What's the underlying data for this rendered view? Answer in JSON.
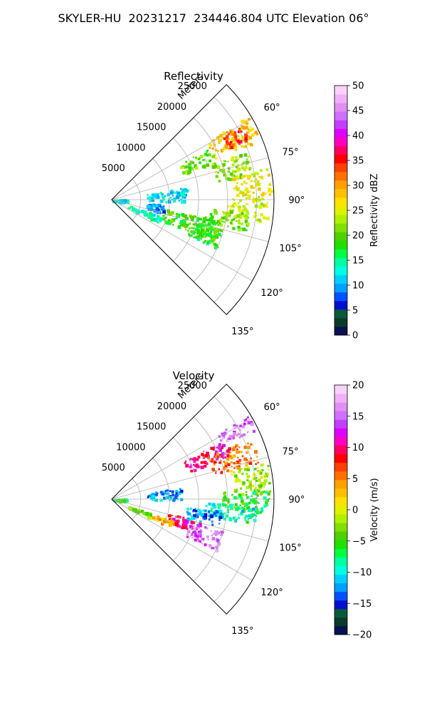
{
  "figure": {
    "title": "SKYLER-HU  20231217  234446.804 UTC Elevation 06°"
  },
  "chart_data": [
    {
      "type": "heatmap",
      "title": "Reflectivity",
      "projection": "polar sector",
      "radial_label": "Meters",
      "radial_ticks": [
        5000,
        10000,
        15000,
        20000,
        25000
      ],
      "radial_tick_labels": [
        "5000",
        "10000",
        "15000",
        "20000",
        "25000"
      ],
      "rlim": [
        0,
        28000
      ],
      "azimuth_ticks": [
        60,
        75,
        90,
        105,
        120,
        135
      ],
      "azimuth_tick_labels": [
        "60°",
        "75°",
        "90°",
        "105°",
        "120°",
        "135°"
      ],
      "azimuth_range": [
        45,
        135
      ],
      "grid": true,
      "colorbar": {
        "label": "Reflectivity dBZ",
        "range": [
          0,
          50
        ],
        "ticks": [
          0,
          5,
          10,
          15,
          20,
          25,
          30,
          35,
          40,
          45,
          50
        ],
        "tick_labels": [
          "0",
          "5",
          "10",
          "15",
          "20",
          "25",
          "30",
          "35",
          "40",
          "45",
          "50"
        ],
        "colors": [
          "#0a1050",
          "#0a3a2a",
          "#0a5a3a",
          "#0010d0",
          "#0050ff",
          "#00a0ff",
          "#00d0ff",
          "#00ffe0",
          "#00ffa0",
          "#00ff40",
          "#20e000",
          "#50d000",
          "#80e000",
          "#b0f000",
          "#e0f000",
          "#ffe000",
          "#ffc000",
          "#ffa000",
          "#ff7000",
          "#ff4000",
          "#ff0000",
          "#ff0060",
          "#ff00c0",
          "#e000ff",
          "#c040ff",
          "#d070ff",
          "#e090f0",
          "#f0b0f8",
          "#fad0fc"
        ]
      },
      "echoes": [
        {
          "az": [
            58,
            68
          ],
          "r": [
            19000,
            27500
          ],
          "value": 28
        },
        {
          "az": [
            60,
            66
          ],
          "r": [
            22000,
            26000
          ],
          "value": 34
        },
        {
          "az": [
            62,
            70
          ],
          "r": [
            13000,
            19000
          ],
          "value": 20
        },
        {
          "az": [
            70,
            80
          ],
          "r": [
            18000,
            25000
          ],
          "value": 22
        },
        {
          "az": [
            78,
            88
          ],
          "r": [
            21000,
            27500
          ],
          "value": 26
        },
        {
          "az": [
            88,
            98
          ],
          "r": [
            20000,
            27000
          ],
          "value": 24
        },
        {
          "az": [
            95,
            103
          ],
          "r": [
            17000,
            24000
          ],
          "value": 21
        },
        {
          "az": [
            100,
            112
          ],
          "r": [
            9000,
            19000
          ],
          "value": 19
        },
        {
          "az": [
            105,
            115
          ],
          "r": [
            14000,
            20000
          ],
          "value": 18
        },
        {
          "az": [
            108,
            116
          ],
          "r": [
            3000,
            9000
          ],
          "value": 14
        },
        {
          "az": [
            80,
            92
          ],
          "r": [
            6000,
            13000
          ],
          "value": 12
        },
        {
          "az": [
            95,
            105
          ],
          "r": [
            6000,
            9000
          ],
          "value": 9
        },
        {
          "az": [
            85,
            100
          ],
          "r": [
            0,
            2500
          ],
          "value": 12
        }
      ]
    },
    {
      "type": "heatmap",
      "title": "Velocity",
      "projection": "polar sector",
      "radial_label": "Meters",
      "radial_ticks": [
        5000,
        10000,
        15000,
        20000,
        25000
      ],
      "radial_tick_labels": [
        "5000",
        "10000",
        "15000",
        "20000",
        "25000"
      ],
      "rlim": [
        0,
        28000
      ],
      "azimuth_ticks": [
        60,
        75,
        90,
        105,
        120,
        135
      ],
      "azimuth_tick_labels": [
        "60°",
        "75°",
        "90°",
        "105°",
        "120°",
        "135°"
      ],
      "azimuth_range": [
        45,
        135
      ],
      "grid": true,
      "colorbar": {
        "label": "Velocity (m/s)",
        "range": [
          -20,
          20
        ],
        "ticks": [
          -20,
          -15,
          -10,
          -5,
          0,
          5,
          10,
          15,
          20
        ],
        "tick_labels": [
          "−20",
          "−15",
          "−10",
          "−5",
          "0",
          "5",
          "10",
          "15",
          "20"
        ],
        "colors": [
          "#0a1050",
          "#0a3a2a",
          "#0a5a3a",
          "#0010d0",
          "#0050ff",
          "#00a0ff",
          "#00d0ff",
          "#00ffe0",
          "#00ffa0",
          "#00ff40",
          "#20e000",
          "#50d000",
          "#80e000",
          "#b0f000",
          "#e0f000",
          "#ffe000",
          "#ffc000",
          "#ffa000",
          "#ff7000",
          "#ff4000",
          "#ff0000",
          "#ff0060",
          "#ff00c0",
          "#e000ff",
          "#c040ff",
          "#d070ff",
          "#e090f0",
          "#f0b0f8",
          "#fad0fc"
        ]
      },
      "echoes": [
        {
          "az": [
            58,
            64
          ],
          "r": [
            21000,
            27500
          ],
          "value": 15
        },
        {
          "az": [
            62,
            70
          ],
          "r": [
            14000,
            22000
          ],
          "value": 11
        },
        {
          "az": [
            66,
            76
          ],
          "r": [
            18000,
            26000
          ],
          "value": 6
        },
        {
          "az": [
            76,
            88
          ],
          "r": [
            21000,
            27500
          ],
          "value": -2
        },
        {
          "az": [
            86,
            95
          ],
          "r": [
            19000,
            27000
          ],
          "value": -6
        },
        {
          "az": [
            92,
            100
          ],
          "r": [
            16000,
            25000
          ],
          "value": -9
        },
        {
          "az": [
            96,
            104
          ],
          "r": [
            13000,
            19000
          ],
          "value": -12
        },
        {
          "az": [
            104,
            112
          ],
          "r": [
            10000,
            16000
          ],
          "value": 10
        },
        {
          "az": [
            106,
            116
          ],
          "r": [
            14000,
            20000
          ],
          "value": 15
        },
        {
          "az": [
            109,
            116
          ],
          "r": [
            6000,
            11000
          ],
          "value": 3
        },
        {
          "az": [
            110,
            118
          ],
          "r": [
            3000,
            7000
          ],
          "value": -3
        },
        {
          "az": [
            80,
            90
          ],
          "r": [
            6000,
            12000
          ],
          "value": -12
        },
        {
          "az": [
            85,
            100
          ],
          "r": [
            0,
            2500
          ],
          "value": -6
        }
      ]
    }
  ]
}
